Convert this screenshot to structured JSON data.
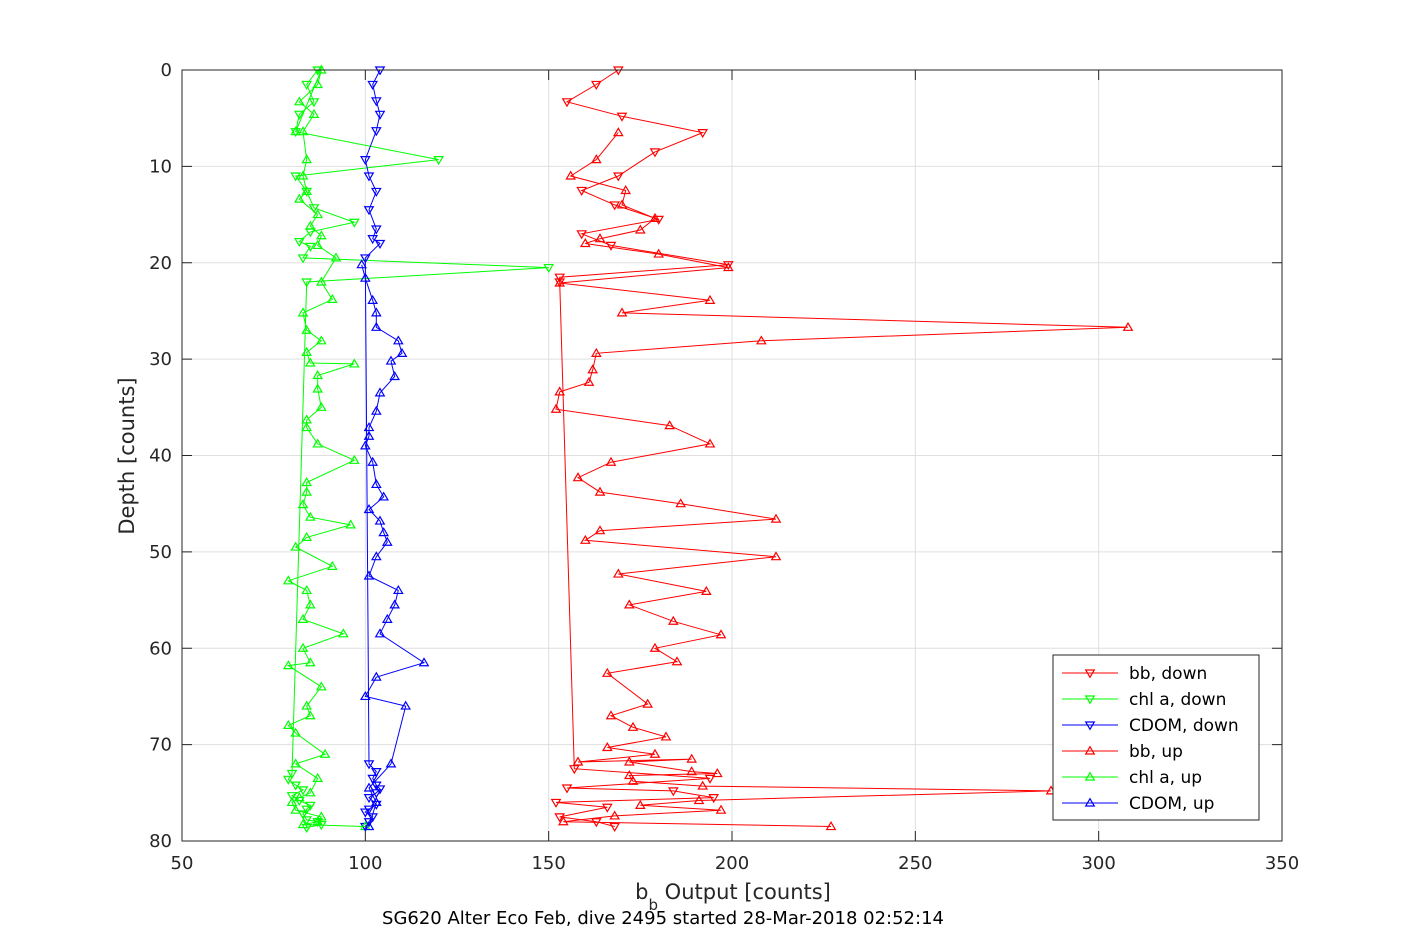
{
  "chart_data": {
    "type": "line",
    "xlabel": "b",
    "xlabel_sub": "b",
    "xlabel_rest": " Output [counts]",
    "ylabel": "Depth [counts]",
    "subtitle": "SG620 Alter Eco Feb, dive 2495 started 28-Mar-2018 02:52:14",
    "xlim": [
      50,
      350
    ],
    "ylim": [
      0,
      80
    ],
    "y_reversed": true,
    "grid": true,
    "legend_position": "bottom-right",
    "xticks": [
      50,
      100,
      150,
      200,
      250,
      300,
      350
    ],
    "yticks": [
      0,
      10,
      20,
      30,
      40,
      50,
      60,
      70,
      80
    ],
    "series": [
      {
        "name": "bb, down",
        "color": "#ff0000",
        "marker": "triangle-down",
        "x": [
          169,
          163,
          155,
          170,
          192,
          179,
          169,
          159,
          168,
          180,
          159,
          167,
          199,
          153,
          153,
          157,
          194,
          155,
          184,
          195,
          152,
          166,
          153,
          163,
          168
        ],
        "y": [
          0.0,
          1.5,
          3.3,
          4.8,
          6.5,
          8.5,
          11.0,
          12.5,
          14.0,
          15.5,
          17.0,
          18.2,
          20.2,
          21.5,
          22.0,
          72.5,
          73.5,
          74.5,
          74.8,
          75.5,
          76.0,
          76.5,
          77.5,
          78.0,
          78.5
        ]
      },
      {
        "name": "chl a, down",
        "color": "#00ff00",
        "marker": "triangle-down",
        "x": [
          87,
          84,
          86,
          82,
          81,
          120,
          81,
          84,
          86,
          97,
          85,
          82,
          85,
          83,
          150,
          84,
          80,
          79,
          81,
          83,
          80,
          82,
          85,
          84,
          83,
          84,
          87,
          88,
          84
        ],
        "y": [
          0.0,
          1.5,
          3.3,
          4.6,
          6.4,
          9.3,
          11.0,
          12.6,
          14.3,
          15.8,
          16.8,
          17.8,
          18.3,
          19.5,
          20.5,
          22.0,
          73.0,
          73.6,
          74.2,
          74.7,
          75.3,
          75.8,
          76.3,
          76.7,
          77.2,
          77.8,
          78.0,
          78.3,
          78.6
        ]
      },
      {
        "name": "CDOM, down",
        "color": "#0000ff",
        "marker": "triangle-down",
        "x": [
          104,
          102,
          103,
          104,
          103,
          100,
          101,
          103,
          101,
          103,
          102,
          104,
          100,
          101,
          103,
          102,
          103,
          104,
          103,
          101,
          103,
          101,
          100,
          102,
          101,
          100
        ],
        "y": [
          0.0,
          1.5,
          3.2,
          4.6,
          6.3,
          9.3,
          11.0,
          12.6,
          14.5,
          16.5,
          17.5,
          18.0,
          19.5,
          72.0,
          72.8,
          73.5,
          74.2,
          74.6,
          75.0,
          75.5,
          76.2,
          76.7,
          77.0,
          77.5,
          78.0,
          78.5
        ]
      },
      {
        "name": "bb, up",
        "color": "#ff0000",
        "marker": "triangle-up",
        "x": [
          227,
          154,
          168,
          197,
          175,
          191,
          287,
          192,
          173,
          172,
          196,
          189,
          172,
          189,
          158,
          179,
          166,
          182,
          173,
          167,
          177,
          166,
          185,
          179,
          197,
          184,
          172,
          193,
          169,
          212,
          160,
          164,
          212,
          186,
          164,
          158,
          167,
          194,
          183,
          152,
          153,
          161,
          162,
          163,
          208,
          308,
          170,
          194,
          153,
          199,
          180,
          160,
          164,
          175,
          179,
          170,
          171,
          156,
          163,
          169
        ],
        "y": [
          78.5,
          78.0,
          77.4,
          76.8,
          76.3,
          75.8,
          74.8,
          74.3,
          73.8,
          73.2,
          73.0,
          72.8,
          71.8,
          71.5,
          71.8,
          71.0,
          70.3,
          69.2,
          68.2,
          67.0,
          65.8,
          62.6,
          61.4,
          60.0,
          58.6,
          57.2,
          55.5,
          54.1,
          52.3,
          50.5,
          48.8,
          47.8,
          46.6,
          45.0,
          43.8,
          42.3,
          40.7,
          38.8,
          36.9,
          35.2,
          33.4,
          32.4,
          31.1,
          29.4,
          28.1,
          26.7,
          25.2,
          23.9,
          22.1,
          20.5,
          19.1,
          18.0,
          17.5,
          16.6,
          15.4,
          14.0,
          12.5,
          11.0,
          9.3,
          6.5
        ]
      },
      {
        "name": "chl a, up",
        "color": "#00ff00",
        "marker": "triangle-up",
        "x": [
          100,
          83,
          87,
          88,
          81,
          80,
          82,
          85,
          87,
          81,
          89,
          81,
          79,
          85,
          84,
          88,
          79,
          85,
          83,
          94,
          83,
          85,
          84,
          79,
          91,
          81,
          84,
          96,
          85,
          83,
          84,
          84,
          97,
          87,
          84,
          84,
          88,
          87,
          87,
          97,
          85,
          84,
          88,
          84,
          83,
          91,
          88,
          92,
          87,
          88,
          85,
          87,
          82,
          84,
          83,
          84,
          83,
          86,
          82,
          87,
          88,
          81
        ],
        "y": [
          78.5,
          78.3,
          78.0,
          77.5,
          76.8,
          76.0,
          75.5,
          75.0,
          73.5,
          72.0,
          71.0,
          68.8,
          68.0,
          67.0,
          66.0,
          64.0,
          61.8,
          61.5,
          60.0,
          58.5,
          57.0,
          55.5,
          54.0,
          53.0,
          51.5,
          49.5,
          48.5,
          47.2,
          46.4,
          45.1,
          43.8,
          42.8,
          40.5,
          38.8,
          37.1,
          36.3,
          35.0,
          33.1,
          31.7,
          30.5,
          30.4,
          29.3,
          28.1,
          27.0,
          25.2,
          23.8,
          22.0,
          19.5,
          18.2,
          17.2,
          16.2,
          15.0,
          13.4,
          12.6,
          11.0,
          9.3,
          6.4,
          4.6,
          3.3,
          1.5,
          0.0,
          6.4
        ]
      },
      {
        "name": "CDOM, up",
        "color": "#0000ff",
        "marker": "triangle-up",
        "x": [
          101,
          103,
          101,
          107,
          111,
          100,
          103,
          116,
          104,
          106,
          108,
          109,
          101,
          103,
          106,
          105,
          104,
          101,
          105,
          103,
          102,
          100,
          101,
          101,
          103,
          104,
          108,
          107,
          110,
          109,
          103,
          103,
          102,
          100,
          99
        ],
        "y": [
          78.5,
          76.0,
          74.5,
          72.0,
          66.0,
          65.0,
          63.0,
          61.5,
          58.5,
          57.0,
          55.5,
          54.0,
          52.5,
          50.5,
          49.0,
          48.0,
          46.8,
          45.6,
          44.3,
          43.0,
          40.7,
          39.0,
          38.0,
          37.1,
          35.4,
          33.5,
          31.8,
          30.2,
          29.4,
          28.1,
          26.7,
          25.2,
          23.9,
          21.6,
          20.2
        ]
      }
    ]
  }
}
